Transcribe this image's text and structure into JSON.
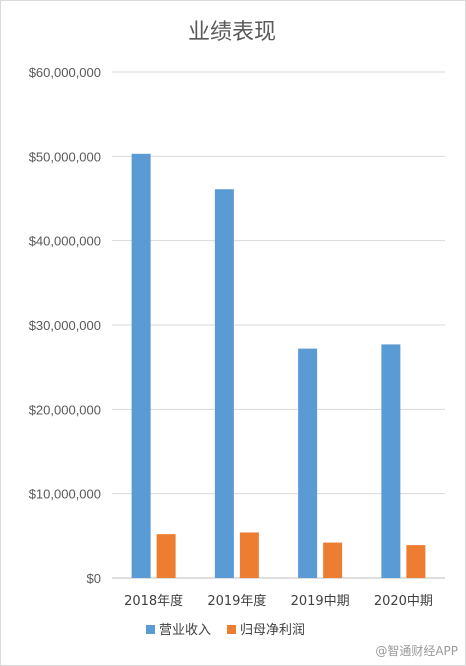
{
  "chart_data": {
    "type": "bar",
    "title": "业绩表现",
    "categories": [
      "2018年度",
      "2019年度",
      "2019中期",
      "2020中期"
    ],
    "series": [
      {
        "name": "营业收入",
        "color": "#5b9bd5",
        "values": [
          50300000,
          46100000,
          27200000,
          27700000
        ]
      },
      {
        "name": "归母净利润",
        "color": "#ed7d31",
        "values": [
          5200000,
          5400000,
          4200000,
          3900000
        ]
      }
    ],
    "ylim": [
      0,
      60000000
    ],
    "ytick_labels": [
      "$0",
      "$10,000,000",
      "$20,000,000",
      "$30,000,000",
      "$40,000,000",
      "$50,000,000",
      "$60,000,000"
    ],
    "grid": true,
    "legend": "bottom"
  },
  "watermark": "@智通财经APP"
}
